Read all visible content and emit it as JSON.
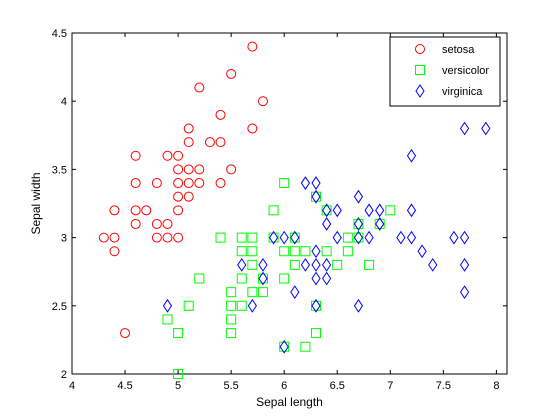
{
  "chart_data": {
    "type": "scatter",
    "title": "",
    "xlabel": "Sepal length",
    "ylabel": "Sepal width",
    "xlim": [
      4,
      8.1
    ],
    "ylim": [
      2,
      4.5
    ],
    "xticks": [
      4,
      4.5,
      5,
      5.5,
      6,
      6.5,
      7,
      7.5,
      8
    ],
    "xtick_labels": [
      "4",
      "4.5",
      "5",
      "5.5",
      "6",
      "6.5",
      "7",
      "7.5",
      "8"
    ],
    "yticks": [
      2,
      2.5,
      3,
      3.5,
      4,
      4.5
    ],
    "ytick_labels": [
      "2",
      "2.5",
      "3",
      "3.5",
      "4",
      "4.5"
    ],
    "grid": false,
    "legend_position": "top-right",
    "series": [
      {
        "name": "setosa",
        "marker": "circle",
        "color": "#ff0000",
        "points": [
          [
            4.3,
            3.0
          ],
          [
            4.4,
            2.9
          ],
          [
            4.4,
            3.0
          ],
          [
            4.4,
            3.2
          ],
          [
            4.5,
            2.3
          ],
          [
            4.6,
            3.1
          ],
          [
            4.6,
            3.2
          ],
          [
            4.6,
            3.4
          ],
          [
            4.6,
            3.6
          ],
          [
            4.7,
            3.2
          ],
          [
            4.8,
            3.0
          ],
          [
            4.8,
            3.1
          ],
          [
            4.8,
            3.4
          ],
          [
            4.9,
            3.0
          ],
          [
            4.9,
            3.1
          ],
          [
            4.9,
            3.6
          ],
          [
            5.0,
            3.0
          ],
          [
            5.0,
            3.2
          ],
          [
            5.0,
            3.3
          ],
          [
            5.0,
            3.4
          ],
          [
            5.0,
            3.5
          ],
          [
            5.0,
            3.6
          ],
          [
            5.1,
            3.3
          ],
          [
            5.1,
            3.4
          ],
          [
            5.1,
            3.5
          ],
          [
            5.1,
            3.7
          ],
          [
            5.1,
            3.8
          ],
          [
            5.2,
            3.4
          ],
          [
            5.2,
            3.5
          ],
          [
            5.2,
            4.1
          ],
          [
            5.3,
            3.7
          ],
          [
            5.4,
            3.4
          ],
          [
            5.4,
            3.7
          ],
          [
            5.4,
            3.9
          ],
          [
            5.5,
            3.5
          ],
          [
            5.5,
            4.2
          ],
          [
            5.7,
            3.8
          ],
          [
            5.7,
            4.4
          ],
          [
            5.8,
            4.0
          ]
        ]
      },
      {
        "name": "versicolor",
        "marker": "square",
        "color": "#00ff00",
        "points": [
          [
            4.9,
            2.4
          ],
          [
            5.0,
            2.0
          ],
          [
            5.0,
            2.3
          ],
          [
            5.1,
            2.5
          ],
          [
            5.2,
            2.7
          ],
          [
            5.4,
            3.0
          ],
          [
            5.5,
            2.3
          ],
          [
            5.5,
            2.4
          ],
          [
            5.5,
            2.5
          ],
          [
            5.5,
            2.6
          ],
          [
            5.6,
            2.5
          ],
          [
            5.6,
            2.7
          ],
          [
            5.6,
            2.9
          ],
          [
            5.6,
            3.0
          ],
          [
            5.7,
            2.6
          ],
          [
            5.7,
            2.8
          ],
          [
            5.7,
            2.9
          ],
          [
            5.7,
            3.0
          ],
          [
            5.8,
            2.6
          ],
          [
            5.8,
            2.7
          ],
          [
            5.9,
            3.0
          ],
          [
            5.9,
            3.2
          ],
          [
            6.0,
            2.2
          ],
          [
            6.0,
            2.7
          ],
          [
            6.0,
            2.9
          ],
          [
            6.0,
            3.4
          ],
          [
            6.1,
            2.8
          ],
          [
            6.1,
            2.9
          ],
          [
            6.1,
            3.0
          ],
          [
            6.2,
            2.2
          ],
          [
            6.2,
            2.9
          ],
          [
            6.3,
            2.3
          ],
          [
            6.3,
            2.5
          ],
          [
            6.3,
            3.3
          ],
          [
            6.4,
            2.9
          ],
          [
            6.4,
            3.2
          ],
          [
            6.5,
            2.8
          ],
          [
            6.6,
            2.9
          ],
          [
            6.6,
            3.0
          ],
          [
            6.7,
            3.0
          ],
          [
            6.7,
            3.1
          ],
          [
            6.8,
            2.8
          ],
          [
            6.9,
            3.1
          ],
          [
            7.0,
            3.2
          ]
        ]
      },
      {
        "name": "virginica",
        "marker": "diamond",
        "color": "#0000ff",
        "points": [
          [
            4.9,
            2.5
          ],
          [
            5.6,
            2.8
          ],
          [
            5.7,
            2.5
          ],
          [
            5.8,
            2.7
          ],
          [
            5.8,
            2.8
          ],
          [
            5.9,
            3.0
          ],
          [
            6.0,
            2.2
          ],
          [
            6.0,
            3.0
          ],
          [
            6.1,
            2.6
          ],
          [
            6.1,
            3.0
          ],
          [
            6.2,
            2.8
          ],
          [
            6.2,
            3.4
          ],
          [
            6.3,
            2.5
          ],
          [
            6.3,
            2.7
          ],
          [
            6.3,
            2.8
          ],
          [
            6.3,
            2.9
          ],
          [
            6.3,
            3.3
          ],
          [
            6.3,
            3.4
          ],
          [
            6.4,
            2.7
          ],
          [
            6.4,
            2.8
          ],
          [
            6.4,
            3.1
          ],
          [
            6.4,
            3.2
          ],
          [
            6.5,
            3.0
          ],
          [
            6.5,
            3.2
          ],
          [
            6.7,
            2.5
          ],
          [
            6.7,
            3.0
          ],
          [
            6.7,
            3.1
          ],
          [
            6.7,
            3.3
          ],
          [
            6.8,
            3.0
          ],
          [
            6.8,
            3.2
          ],
          [
            6.9,
            3.1
          ],
          [
            6.9,
            3.2
          ],
          [
            7.1,
            3.0
          ],
          [
            7.2,
            3.0
          ],
          [
            7.2,
            3.2
          ],
          [
            7.2,
            3.6
          ],
          [
            7.3,
            2.9
          ],
          [
            7.4,
            2.8
          ],
          [
            7.6,
            3.0
          ],
          [
            7.7,
            2.6
          ],
          [
            7.7,
            2.8
          ],
          [
            7.7,
            3.0
          ],
          [
            7.7,
            3.8
          ],
          [
            7.9,
            3.8
          ]
        ]
      }
    ]
  }
}
